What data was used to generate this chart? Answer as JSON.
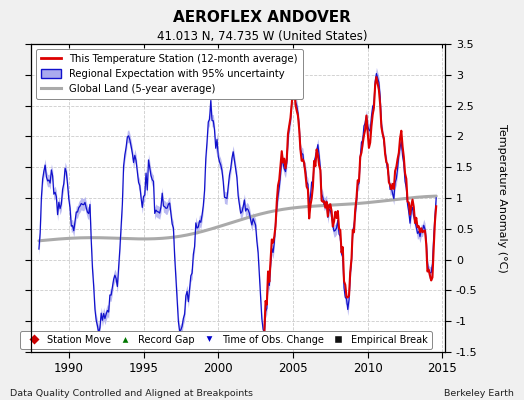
{
  "title": "AEROFLEX ANDOVER",
  "subtitle": "41.013 N, 74.735 W (United States)",
  "ylabel": "Temperature Anomaly (°C)",
  "xlabel_left": "Data Quality Controlled and Aligned at Breakpoints",
  "xlabel_right": "Berkeley Earth",
  "ylim": [
    -1.5,
    3.5
  ],
  "xlim": [
    1987.5,
    2015.2
  ],
  "yticks": [
    -1.5,
    -1.0,
    -0.5,
    0.0,
    0.5,
    1.0,
    1.5,
    2.0,
    2.5,
    3.0,
    3.5
  ],
  "xticks": [
    1990,
    1995,
    2000,
    2005,
    2010,
    2015
  ],
  "legend1_labels": [
    "This Temperature Station (12-month average)",
    "Regional Expectation with 95% uncertainty",
    "Global Land (5-year average)"
  ],
  "legend2_labels": [
    "Station Move",
    "Record Gap",
    "Time of Obs. Change",
    "Empirical Break"
  ],
  "line_red_color": "#dd0000",
  "line_blue_color": "#1111cc",
  "fill_blue_color": "#aaaaee",
  "line_gray_color": "#aaaaaa",
  "bg_color": "#f0f0f0",
  "plot_bg_color": "#ffffff",
  "grid_color": "#cccccc",
  "border_color": "#444444"
}
